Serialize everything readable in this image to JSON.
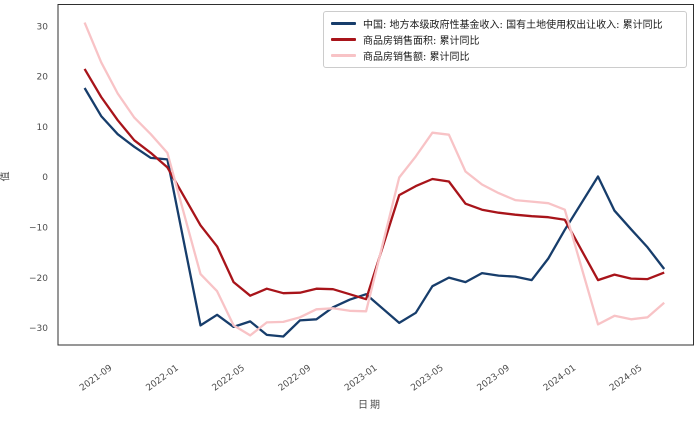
{
  "figure": {
    "background": "#ffffff",
    "spine_color": "#2f2f2f",
    "tick_text_color": "#4d4d4d"
  },
  "axes": {
    "y_label": "值",
    "x_label": "日期",
    "y_ticks": [
      {
        "value": 30,
        "label": "30"
      },
      {
        "value": 20,
        "label": "20"
      },
      {
        "value": 10,
        "label": "10"
      },
      {
        "value": 0,
        "label": "0"
      },
      {
        "value": -10,
        "label": "−10"
      },
      {
        "value": -20,
        "label": "−20"
      },
      {
        "value": -30,
        "label": "−30"
      }
    ],
    "x_ticks": [
      {
        "date": "2021-09",
        "label": "2021-09"
      },
      {
        "date": "2022-01",
        "label": "2022-01"
      },
      {
        "date": "2022-05",
        "label": "2022-05"
      },
      {
        "date": "2022-09",
        "label": "2022-09"
      },
      {
        "date": "2023-01",
        "label": "2023-01"
      },
      {
        "date": "2023-05",
        "label": "2023-05"
      },
      {
        "date": "2023-09",
        "label": "2023-09"
      },
      {
        "date": "2024-01",
        "label": "2024-01"
      },
      {
        "date": "2024-05",
        "label": "2024-05"
      }
    ]
  },
  "chart_data": {
    "type": "line",
    "title": "",
    "xlabel": "日期",
    "ylabel": "值",
    "grid": false,
    "legend_position": "upper right",
    "ylim": [
      -33.4,
      34.3
    ],
    "x": [
      "2021-07",
      "2021-08",
      "2021-09",
      "2021-10",
      "2021-11",
      "2021-12",
      "2022-02",
      "2022-03",
      "2022-04",
      "2022-05",
      "2022-06",
      "2022-07",
      "2022-08",
      "2022-09",
      "2022-10",
      "2022-11",
      "2022-12",
      "2023-02",
      "2023-03",
      "2023-04",
      "2023-05",
      "2023-06",
      "2023-07",
      "2023-08",
      "2023-09",
      "2023-10",
      "2023-11",
      "2023-12",
      "2024-02",
      "2024-03",
      "2024-04",
      "2024-05",
      "2024-06"
    ],
    "series": [
      {
        "name": "中国: 地方本级政府性基金收入: 国有土地使用权出让收入: 累计同比",
        "color": "#173d6b",
        "values": [
          17.7,
          12.1,
          8.5,
          6.0,
          3.8,
          3.5,
          -29.5,
          -27.4,
          -29.8,
          -28.7,
          -31.4,
          -31.7,
          -28.5,
          -28.3,
          -25.9,
          -24.4,
          -23.3,
          -29.0,
          -27.0,
          -21.7,
          -20.0,
          -20.9,
          -19.1,
          -19.6,
          -19.8,
          -20.5,
          -16.2,
          -10.5,
          0.1,
          -6.7,
          -10.4,
          -14.0,
          -18.3
        ]
      },
      {
        "name": "商品房销售面积: 累计同比",
        "color": "#a8141a",
        "values": [
          21.5,
          15.9,
          11.3,
          7.3,
          4.8,
          1.9,
          -9.6,
          -13.8,
          -20.9,
          -23.6,
          -22.2,
          -23.1,
          -23.0,
          -22.2,
          -22.3,
          -23.3,
          -24.3,
          -3.6,
          -1.8,
          -0.4,
          -0.9,
          -5.3,
          -6.5,
          -7.1,
          -7.5,
          -7.8,
          -8.0,
          -8.5,
          -20.5,
          -19.4,
          -20.2,
          -20.3,
          -19.0
        ]
      },
      {
        "name": "商品房销售额: 累计同比",
        "color": "#f8c3c6",
        "values": [
          30.7,
          22.8,
          16.6,
          11.8,
          8.5,
          4.8,
          -19.3,
          -22.7,
          -29.5,
          -31.5,
          -28.9,
          -28.8,
          -27.9,
          -26.3,
          -26.1,
          -26.6,
          -26.7,
          -0.1,
          4.1,
          8.8,
          8.4,
          1.1,
          -1.5,
          -3.2,
          -4.6,
          -4.9,
          -5.2,
          -6.5,
          -29.3,
          -27.6,
          -28.3,
          -27.9,
          -25.0
        ]
      }
    ]
  }
}
